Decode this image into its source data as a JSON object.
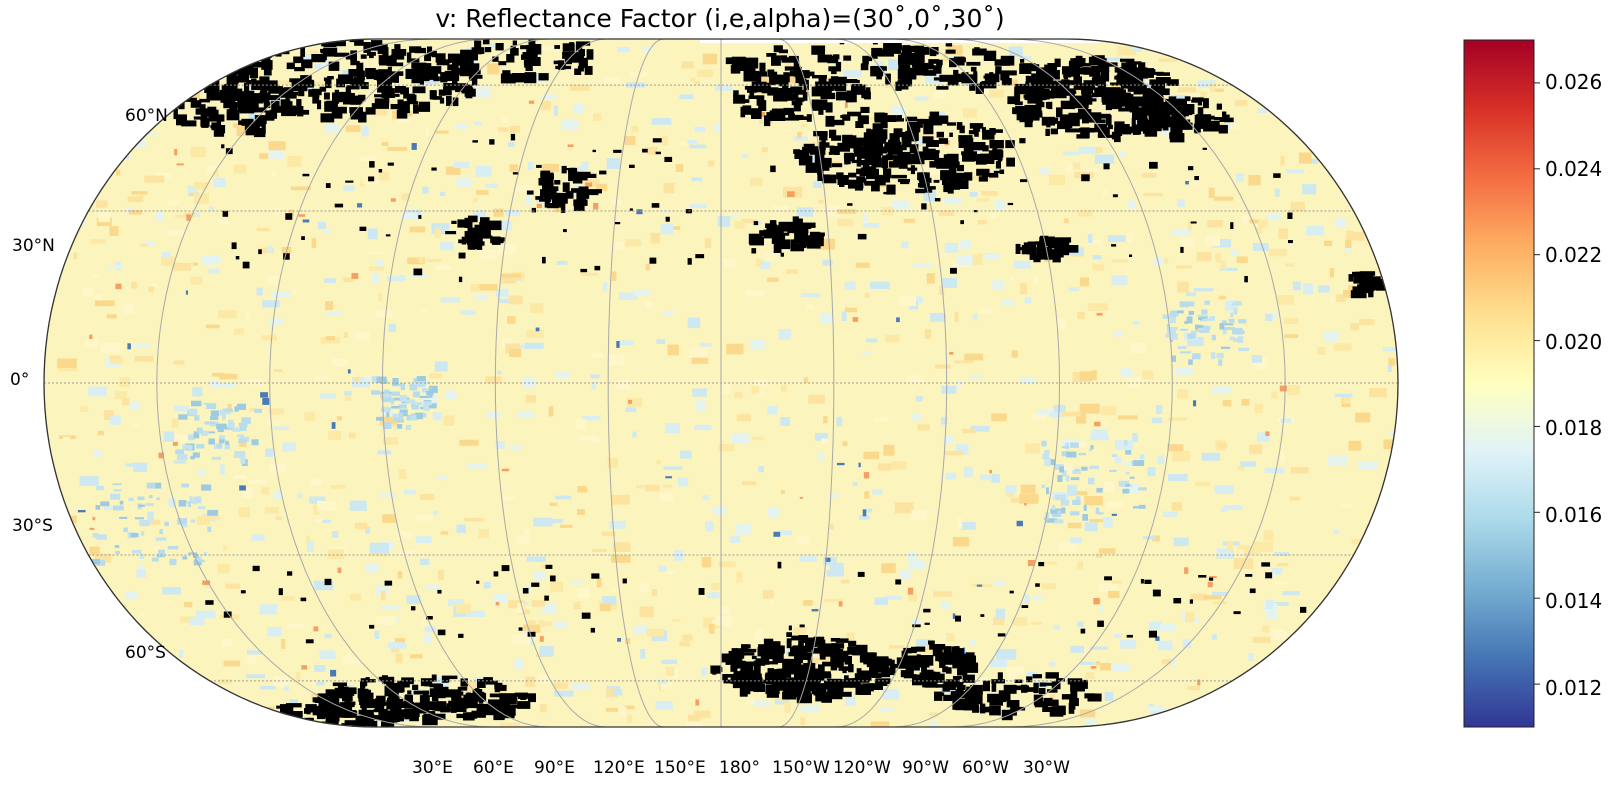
{
  "title": "v: Reflectance Factor (i,e,alpha)=(30˚,0˚,30˚)",
  "map": {
    "projection": "robinson",
    "central_meridian": "180°",
    "latitude_labels": [
      "60°N",
      "30°N",
      "0°",
      "30°S",
      "60°S"
    ],
    "longitude_labels": [
      "30°E",
      "60°E",
      "90°E",
      "120°E",
      "150°E",
      "180°",
      "150°W",
      "120°W",
      "90°W",
      "60°W",
      "30°W"
    ],
    "graticule_style": "dotted gray lines",
    "no_data_color": "#000000"
  },
  "colorbar": {
    "colormap": "RdYlBu_r",
    "range": [
      0.011,
      0.027
    ],
    "ticks": [
      "0.026",
      "0.024",
      "0.022",
      "0.020",
      "0.018",
      "0.016",
      "0.014",
      "0.012"
    ],
    "colors": [
      "#313695",
      "#4575b4",
      "#74add1",
      "#abd9e9",
      "#e0f3f8",
      "#ffffbf",
      "#fee090",
      "#fdae61",
      "#f46d43",
      "#d73027",
      "#a50026"
    ]
  }
}
